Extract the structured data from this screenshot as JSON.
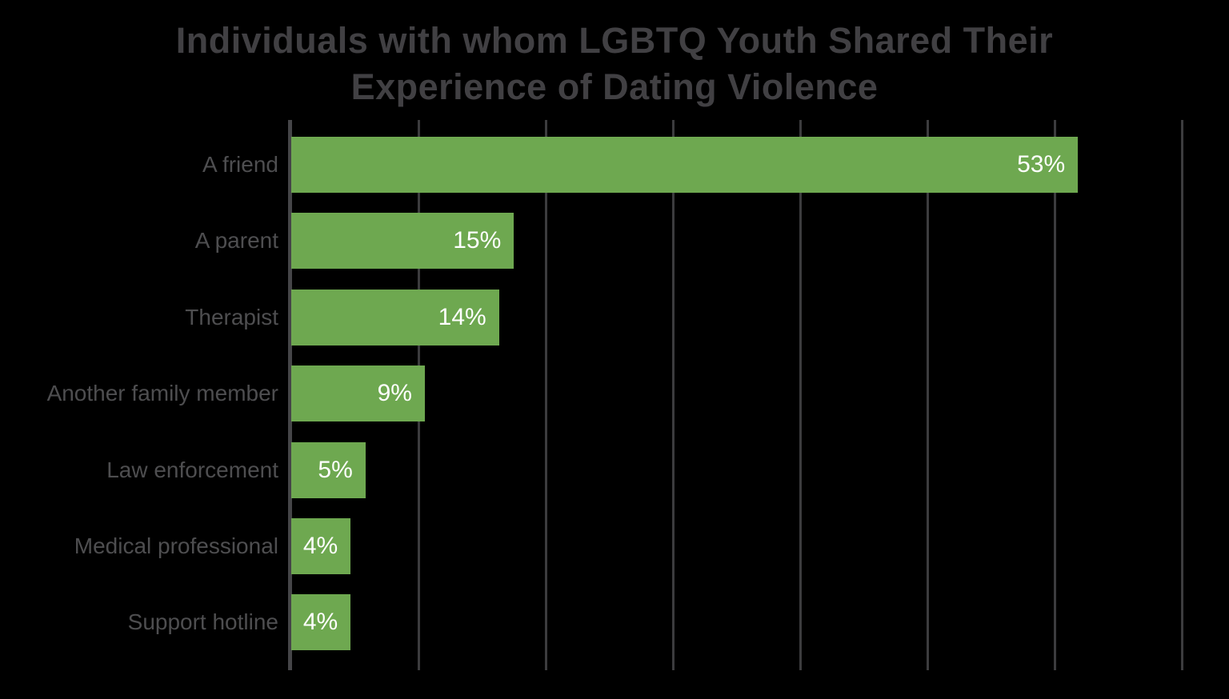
{
  "chart_data": {
    "type": "bar",
    "orientation": "horizontal",
    "title": "Individuals with whom LGBTQ Youth Shared Their Experience of Dating Violence",
    "title_lines": {
      "line1": "Individuals with whom LGBTQ Youth Shared Their",
      "line2": "Experience of Dating Violence"
    },
    "categories": [
      "A friend",
      "A parent",
      "Therapist",
      "Another family member",
      "Law enforcement",
      "Medical professional",
      "Support hotline"
    ],
    "values": [
      53,
      15,
      14,
      9,
      5,
      4,
      4
    ],
    "value_labels": [
      "53%",
      "15%",
      "14%",
      "9%",
      "5%",
      "4%",
      "4%"
    ],
    "xlabel": "",
    "ylabel": "",
    "xlim": [
      0,
      60
    ],
    "gridlines": {
      "count": 8,
      "visible": true,
      "tick_labels_visible": false
    },
    "legend": "none",
    "colors": {
      "bar": "#6ea850",
      "background": "#000000",
      "title_text": "#414043",
      "category_text": "#4e4e50",
      "value_text": "#ffffff",
      "gridline": "#3c3c3e",
      "axis_line": "#454548"
    }
  }
}
